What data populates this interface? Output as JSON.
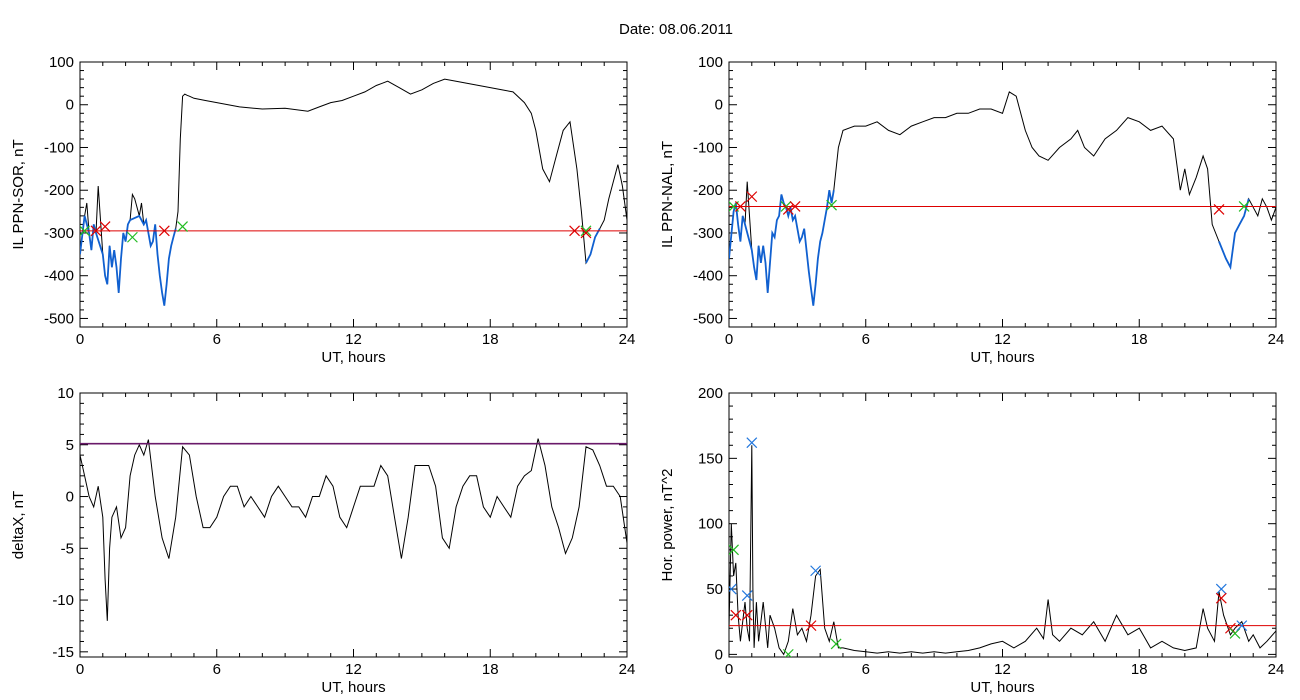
{
  "title": "Date:  08.06.2011",
  "colors": {
    "trace": "#000000",
    "event": "#1060d0",
    "threshold": "#dd0000",
    "threshold_purple": "#6a1a6a",
    "mark_red": "#dd0000",
    "mark_green": "#22bb22",
    "mark_blue": "#2277dd"
  },
  "chart_data": [
    {
      "type": "line",
      "xlabel": "UT, hours",
      "ylabel": "IL PPN-SOR, nT",
      "xlim": [
        0,
        24
      ],
      "ylim": [
        -520,
        100
      ],
      "xticks": [
        0,
        6,
        12,
        18,
        24
      ],
      "yticks": [
        -500,
        -400,
        -300,
        -200,
        -100,
        0,
        100
      ],
      "threshold": -295,
      "series": [
        {
          "x": [
            0,
            0.2,
            0.3,
            0.4,
            0.5,
            0.6,
            0.7,
            0.8,
            1.0,
            1.1,
            1.2,
            1.3,
            1.4,
            1.5,
            1.6,
            1.7,
            1.8,
            1.9,
            2.0,
            2.1,
            2.2,
            2.3,
            2.4,
            2.5,
            2.6,
            2.7,
            2.8,
            2.9,
            3.0,
            3.1,
            3.2,
            3.3,
            3.4,
            3.5,
            3.6,
            3.7,
            3.8,
            3.9,
            4.0,
            4.1,
            4.2,
            4.3,
            4.4,
            4.5,
            4.6,
            4.7,
            4.8,
            5.0,
            5.5,
            6.0,
            7.0,
            8.0,
            9.0,
            10.0,
            10.5,
            11.0,
            11.5,
            12.0,
            12.5,
            13.0,
            13.5,
            14.0,
            14.5,
            15.0,
            15.5,
            16.0,
            16.5,
            17.0,
            17.5,
            18.0,
            18.5,
            19.0,
            19.5,
            19.8,
            20.0,
            20.3,
            20.6,
            20.9,
            21.2,
            21.5,
            21.8,
            22.0,
            22.2,
            22.4,
            22.6,
            22.8,
            23.0,
            23.2,
            23.4,
            23.6,
            23.8,
            24.0
          ],
          "y": [
            -350,
            -260,
            -230,
            -300,
            -340,
            -280,
            -300,
            -190,
            -350,
            -400,
            -420,
            -330,
            -380,
            -340,
            -380,
            -440,
            -360,
            -300,
            -320,
            -280,
            -270,
            -210,
            -220,
            -240,
            -260,
            -230,
            -280,
            -270,
            -300,
            -330,
            -320,
            -280,
            -350,
            -400,
            -440,
            -470,
            -420,
            -360,
            -330,
            -310,
            -290,
            -250,
            -80,
            20,
            25,
            22,
            20,
            15,
            10,
            5,
            -5,
            -10,
            -8,
            -15,
            -5,
            5,
            10,
            20,
            30,
            45,
            55,
            40,
            25,
            35,
            50,
            60,
            55,
            50,
            45,
            40,
            35,
            30,
            5,
            -20,
            -60,
            -150,
            -180,
            -120,
            -60,
            -40,
            -150,
            -250,
            -370,
            -350,
            -310,
            -290,
            -270,
            -220,
            -180,
            -140,
            -190,
            -270
          ],
          "event_segments": [
            [
              0,
              4.8
            ],
            [
              21.4,
              22.8
            ]
          ],
          "marks": [
            {
              "x": 0.2,
              "y": -295,
              "color": "green"
            },
            {
              "x": 0.7,
              "y": -295,
              "color": "red"
            },
            {
              "x": 1.1,
              "y": -285,
              "color": "red"
            },
            {
              "x": 2.3,
              "y": -310,
              "color": "green"
            },
            {
              "x": 3.7,
              "y": -295,
              "color": "red"
            },
            {
              "x": 4.5,
              "y": -285,
              "color": "green"
            },
            {
              "x": 21.7,
              "y": -295,
              "color": "red"
            },
            {
              "x": 22.2,
              "y": -295,
              "color": "green"
            },
            {
              "x": 22.2,
              "y": -300,
              "color": "red"
            }
          ]
        }
      ]
    },
    {
      "type": "line",
      "xlabel": "UT, hours",
      "ylabel": "IL PPN-NAL, nT",
      "xlim": [
        0,
        24
      ],
      "ylim": [
        -520,
        100
      ],
      "xticks": [
        0,
        6,
        12,
        18,
        24
      ],
      "yticks": [
        -500,
        -400,
        -300,
        -200,
        -100,
        0,
        100
      ],
      "threshold": -238,
      "series": [
        {
          "x": [
            0,
            0.2,
            0.3,
            0.4,
            0.5,
            0.6,
            0.7,
            0.8,
            1.0,
            1.1,
            1.2,
            1.3,
            1.4,
            1.5,
            1.6,
            1.7,
            1.8,
            1.9,
            2.0,
            2.1,
            2.2,
            2.3,
            2.4,
            2.5,
            2.6,
            2.7,
            2.8,
            2.9,
            3.0,
            3.1,
            3.2,
            3.3,
            3.4,
            3.5,
            3.6,
            3.7,
            3.8,
            3.9,
            4.0,
            4.1,
            4.2,
            4.3,
            4.4,
            4.5,
            4.6,
            4.8,
            5.0,
            5.5,
            6.0,
            6.5,
            7.0,
            7.5,
            8.0,
            8.5,
            9.0,
            9.5,
            10.0,
            10.5,
            11.0,
            11.5,
            12.0,
            12.3,
            12.6,
            13.0,
            13.3,
            13.6,
            14.0,
            14.5,
            15.0,
            15.3,
            15.6,
            16.0,
            16.5,
            17.0,
            17.5,
            18.0,
            18.5,
            19.0,
            19.5,
            19.8,
            20.0,
            20.2,
            20.5,
            20.8,
            21.0,
            21.2,
            21.5,
            21.8,
            22.0,
            22.2,
            22.4,
            22.6,
            22.8,
            23.0,
            23.2,
            23.4,
            23.6,
            23.8,
            24.0
          ],
          "y": [
            -360,
            -250,
            -230,
            -280,
            -320,
            -260,
            -280,
            -180,
            -340,
            -380,
            -410,
            -330,
            -370,
            -330,
            -370,
            -440,
            -370,
            -300,
            -310,
            -270,
            -260,
            -210,
            -230,
            -240,
            -260,
            -240,
            -270,
            -260,
            -290,
            -320,
            -310,
            -290,
            -340,
            -390,
            -430,
            -470,
            -420,
            -360,
            -320,
            -300,
            -270,
            -240,
            -200,
            -230,
            -200,
            -100,
            -60,
            -50,
            -50,
            -40,
            -60,
            -70,
            -50,
            -40,
            -30,
            -30,
            -20,
            -20,
            -10,
            -10,
            -20,
            30,
            20,
            -60,
            -100,
            -120,
            -130,
            -100,
            -80,
            -60,
            -100,
            -120,
            -80,
            -60,
            -30,
            -40,
            -60,
            -50,
            -80,
            -200,
            -150,
            -210,
            -170,
            -120,
            -150,
            -280,
            -320,
            -360,
            -380,
            -300,
            -280,
            -260,
            -220,
            -240,
            -260,
            -220,
            -240,
            -270,
            -240
          ],
          "event_segments": [
            [
              0,
              4.6
            ],
            [
              21.4,
              22.8
            ]
          ],
          "marks": [
            {
              "x": 0.2,
              "y": -238,
              "color": "green"
            },
            {
              "x": 0.5,
              "y": -238,
              "color": "red"
            },
            {
              "x": 1.0,
              "y": -215,
              "color": "red"
            },
            {
              "x": 2.5,
              "y": -238,
              "color": "green"
            },
            {
              "x": 2.6,
              "y": -245,
              "color": "red"
            },
            {
              "x": 2.9,
              "y": -238,
              "color": "red"
            },
            {
              "x": 4.5,
              "y": -235,
              "color": "green"
            },
            {
              "x": 21.5,
              "y": -245,
              "color": "red"
            },
            {
              "x": 22.6,
              "y": -238,
              "color": "green"
            }
          ]
        }
      ]
    },
    {
      "type": "line",
      "xlabel": "UT, hours",
      "ylabel": "deltaX, nT",
      "xlim": [
        0,
        24
      ],
      "ylim": [
        -15.5,
        10
      ],
      "xticks": [
        0,
        6,
        12,
        18,
        24
      ],
      "yticks": [
        -15,
        -10,
        -5,
        0,
        5,
        10
      ],
      "threshold": 5.1,
      "series": [
        {
          "x": [
            0,
            0.2,
            0.4,
            0.6,
            0.8,
            1.0,
            1.1,
            1.2,
            1.3,
            1.4,
            1.6,
            1.8,
            2.0,
            2.2,
            2.4,
            2.6,
            2.8,
            3.0,
            3.3,
            3.6,
            3.9,
            4.2,
            4.5,
            4.8,
            5.1,
            5.4,
            5.7,
            6.0,
            6.3,
            6.6,
            6.9,
            7.2,
            7.5,
            7.8,
            8.1,
            8.4,
            8.7,
            9.0,
            9.3,
            9.6,
            9.9,
            10.2,
            10.5,
            10.8,
            11.1,
            11.4,
            11.7,
            12.0,
            12.3,
            12.6,
            12.9,
            13.2,
            13.5,
            13.8,
            14.1,
            14.4,
            14.7,
            15.0,
            15.3,
            15.6,
            15.9,
            16.2,
            16.5,
            16.8,
            17.1,
            17.4,
            17.7,
            18.0,
            18.3,
            18.6,
            18.9,
            19.2,
            19.5,
            19.8,
            20.1,
            20.4,
            20.7,
            21.0,
            21.3,
            21.6,
            21.9,
            22.2,
            22.5,
            22.8,
            23.1,
            23.4,
            23.7,
            24.0
          ],
          "y": [
            4,
            2,
            0,
            -1,
            1,
            -2,
            -8,
            -12,
            -5,
            -2,
            -1,
            -4,
            -3,
            2,
            4,
            5,
            4,
            5.5,
            0,
            -4,
            -6,
            -2,
            4.8,
            4,
            0,
            -3,
            -3,
            -2,
            0,
            1,
            1,
            -1,
            0,
            -1,
            -2,
            0,
            1,
            0,
            -1,
            -1,
            -2,
            0,
            0,
            2,
            1,
            -2,
            -3,
            -1,
            1,
            1,
            1,
            3,
            2,
            -2,
            -6,
            -2,
            3,
            3,
            3,
            1,
            -4,
            -5,
            -1,
            1,
            2,
            2,
            -1,
            -2,
            0,
            -1,
            -2,
            1,
            2,
            2.5,
            5.6,
            3,
            -1,
            -3,
            -5.5,
            -4,
            -1,
            4.8,
            4.5,
            3,
            1,
            1,
            0,
            -4.5
          ]
        }
      ]
    },
    {
      "type": "line",
      "xlabel": "UT, hours",
      "ylabel": "Hor. power, nT^2",
      "xlim": [
        0,
        24
      ],
      "ylim": [
        -2,
        200
      ],
      "xticks": [
        0,
        6,
        12,
        18,
        24
      ],
      "yticks": [
        0,
        50,
        100,
        150,
        200
      ],
      "threshold": 22,
      "series": [
        {
          "x": [
            0,
            0.1,
            0.2,
            0.3,
            0.4,
            0.5,
            0.6,
            0.7,
            0.8,
            0.9,
            1.0,
            1.05,
            1.1,
            1.2,
            1.3,
            1.5,
            1.7,
            1.8,
            2.0,
            2.2,
            2.4,
            2.6,
            2.8,
            3.0,
            3.2,
            3.4,
            3.6,
            3.8,
            4.0,
            4.2,
            4.4,
            4.6,
            4.8,
            5.0,
            5.5,
            6.0,
            6.5,
            7.0,
            7.5,
            8.0,
            8.5,
            9.0,
            9.5,
            10.0,
            10.5,
            11.0,
            11.5,
            12.0,
            12.5,
            13.0,
            13.5,
            13.8,
            14.0,
            14.2,
            14.5,
            15.0,
            15.5,
            16.0,
            16.5,
            17.0,
            17.5,
            18.0,
            18.5,
            19.0,
            19.5,
            20.0,
            20.5,
            20.8,
            21.0,
            21.3,
            21.5,
            21.7,
            22.0,
            22.2,
            22.5,
            22.8,
            23.0,
            23.3,
            23.6,
            24.0
          ],
          "y": [
            20,
            100,
            60,
            70,
            30,
            10,
            25,
            40,
            20,
            10,
            160,
            50,
            5,
            40,
            10,
            40,
            5,
            30,
            20,
            5,
            0,
            10,
            35,
            15,
            20,
            10,
            30,
            60,
            65,
            20,
            10,
            25,
            5,
            5,
            3,
            2,
            1,
            2,
            1,
            2,
            1,
            2,
            1,
            2,
            3,
            5,
            8,
            10,
            5,
            10,
            20,
            12,
            42,
            15,
            10,
            20,
            15,
            25,
            10,
            30,
            15,
            20,
            5,
            10,
            5,
            3,
            5,
            35,
            20,
            10,
            48,
            30,
            15,
            20,
            25,
            10,
            15,
            5,
            10,
            18
          ],
          "marks": [
            {
              "x": 0.1,
              "y": 50,
              "color": "blue"
            },
            {
              "x": 0.3,
              "y": 30,
              "color": "red"
            },
            {
              "x": 0.8,
              "y": 45,
              "color": "blue"
            },
            {
              "x": 0.8,
              "y": 30,
              "color": "red"
            },
            {
              "x": 1.0,
              "y": 162,
              "color": "blue"
            },
            {
              "x": 0.2,
              "y": 80,
              "color": "green"
            },
            {
              "x": 2.6,
              "y": 0,
              "color": "green"
            },
            {
              "x": 3.6,
              "y": 22,
              "color": "red"
            },
            {
              "x": 3.8,
              "y": 64,
              "color": "blue"
            },
            {
              "x": 4.7,
              "y": 8,
              "color": "green"
            },
            {
              "x": 21.6,
              "y": 50,
              "color": "blue"
            },
            {
              "x": 21.6,
              "y": 43,
              "color": "red"
            },
            {
              "x": 22.0,
              "y": 20,
              "color": "red"
            },
            {
              "x": 22.2,
              "y": 16,
              "color": "green"
            },
            {
              "x": 22.5,
              "y": 22,
              "color": "blue"
            }
          ]
        }
      ]
    }
  ]
}
